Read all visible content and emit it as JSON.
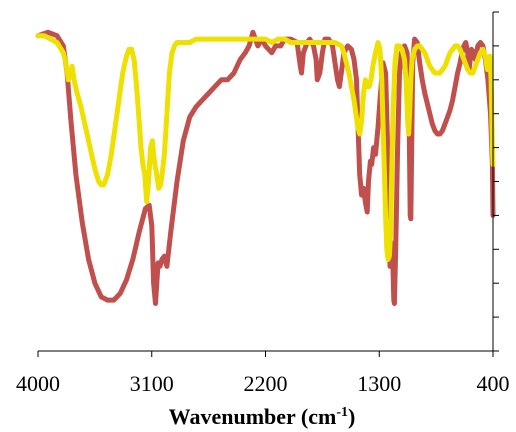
{
  "chart_data": {
    "type": "line",
    "xlabel": "Wavenumber (cm",
    "xlabel_sup": "-1",
    "xlabel_end": ")",
    "xlim": [
      4000,
      400
    ],
    "x_reversed": true,
    "xticks": [
      4000,
      3100,
      2200,
      1300,
      400
    ],
    "ylim": [
      0,
      1
    ],
    "y_ticks_count": 11,
    "y_tick_labels_shown": false,
    "grid": false,
    "legend": "none",
    "series": [
      {
        "color": "#c0504d",
        "points": [
          [
            4000,
            0.93
          ],
          [
            3920,
            0.94
          ],
          [
            3850,
            0.93
          ],
          [
            3800,
            0.9
          ],
          [
            3770,
            0.82
          ],
          [
            3740,
            0.68
          ],
          [
            3700,
            0.52
          ],
          [
            3650,
            0.38
          ],
          [
            3600,
            0.27
          ],
          [
            3550,
            0.2
          ],
          [
            3500,
            0.16
          ],
          [
            3450,
            0.15
          ],
          [
            3400,
            0.15
          ],
          [
            3350,
            0.17
          ],
          [
            3300,
            0.21
          ],
          [
            3250,
            0.27
          ],
          [
            3200,
            0.35
          ],
          [
            3150,
            0.42
          ],
          [
            3120,
            0.43
          ],
          [
            3100,
            0.37
          ],
          [
            3085,
            0.2
          ],
          [
            3070,
            0.14
          ],
          [
            3060,
            0.2
          ],
          [
            3050,
            0.26
          ],
          [
            3035,
            0.25
          ],
          [
            3020,
            0.27
          ],
          [
            3000,
            0.28
          ],
          [
            2980,
            0.25
          ],
          [
            2950,
            0.35
          ],
          [
            2900,
            0.5
          ],
          [
            2850,
            0.62
          ],
          [
            2800,
            0.69
          ],
          [
            2750,
            0.72
          ],
          [
            2700,
            0.74
          ],
          [
            2650,
            0.76
          ],
          [
            2600,
            0.78
          ],
          [
            2550,
            0.8
          ],
          [
            2500,
            0.8
          ],
          [
            2450,
            0.82
          ],
          [
            2400,
            0.86
          ],
          [
            2360,
            0.88
          ],
          [
            2330,
            0.9
          ],
          [
            2300,
            0.94
          ],
          [
            2260,
            0.9
          ],
          [
            2230,
            0.92
          ],
          [
            2200,
            0.9
          ],
          [
            2150,
            0.88
          ],
          [
            2120,
            0.9
          ],
          [
            2080,
            0.9
          ],
          [
            2050,
            0.92
          ],
          [
            2000,
            0.92
          ],
          [
            1950,
            0.91
          ],
          [
            1925,
            0.84
          ],
          [
            1915,
            0.82
          ],
          [
            1900,
            0.88
          ],
          [
            1870,
            0.91
          ],
          [
            1850,
            0.92
          ],
          [
            1820,
            0.9
          ],
          [
            1800,
            0.86
          ],
          [
            1790,
            0.8
          ],
          [
            1770,
            0.82
          ],
          [
            1750,
            0.88
          ],
          [
            1730,
            0.92
          ],
          [
            1700,
            0.92
          ],
          [
            1670,
            0.9
          ],
          [
            1650,
            0.85
          ],
          [
            1630,
            0.8
          ],
          [
            1615,
            0.78
          ],
          [
            1600,
            0.82
          ],
          [
            1580,
            0.88
          ],
          [
            1550,
            0.9
          ],
          [
            1520,
            0.89
          ],
          [
            1500,
            0.86
          ],
          [
            1480,
            0.8
          ],
          [
            1470,
            0.68
          ],
          [
            1455,
            0.52
          ],
          [
            1440,
            0.46
          ],
          [
            1425,
            0.48
          ],
          [
            1410,
            0.44
          ],
          [
            1395,
            0.41
          ],
          [
            1385,
            0.5
          ],
          [
            1370,
            0.56
          ],
          [
            1360,
            0.55
          ],
          [
            1345,
            0.6
          ],
          [
            1330,
            0.58
          ],
          [
            1310,
            0.66
          ],
          [
            1290,
            0.76
          ],
          [
            1270,
            0.85
          ],
          [
            1250,
            0.82
          ],
          [
            1230,
            0.55
          ],
          [
            1215,
            0.25
          ],
          [
            1205,
            0.32
          ],
          [
            1195,
            0.3
          ],
          [
            1185,
            0.15
          ],
          [
            1180,
            0.14
          ],
          [
            1170,
            0.3
          ],
          [
            1155,
            0.6
          ],
          [
            1140,
            0.82
          ],
          [
            1125,
            0.88
          ],
          [
            1100,
            0.9
          ],
          [
            1080,
            0.88
          ],
          [
            1065,
            0.72
          ],
          [
            1055,
            0.4
          ],
          [
            1050,
            0.39
          ],
          [
            1045,
            0.55
          ],
          [
            1035,
            0.85
          ],
          [
            1020,
            0.92
          ],
          [
            1000,
            0.91
          ],
          [
            980,
            0.85
          ],
          [
            960,
            0.8
          ],
          [
            940,
            0.76
          ],
          [
            920,
            0.73
          ],
          [
            900,
            0.7
          ],
          [
            880,
            0.67
          ],
          [
            860,
            0.65
          ],
          [
            840,
            0.64
          ],
          [
            820,
            0.64
          ],
          [
            800,
            0.65
          ],
          [
            780,
            0.67
          ],
          [
            760,
            0.69
          ],
          [
            740,
            0.71
          ],
          [
            720,
            0.74
          ],
          [
            700,
            0.78
          ],
          [
            680,
            0.82
          ],
          [
            660,
            0.85
          ],
          [
            645,
            0.88
          ],
          [
            630,
            0.9
          ],
          [
            615,
            0.91
          ],
          [
            600,
            0.88
          ],
          [
            590,
            0.83
          ],
          [
            580,
            0.86
          ],
          [
            570,
            0.89
          ],
          [
            555,
            0.88
          ],
          [
            540,
            0.86
          ],
          [
            520,
            0.9
          ],
          [
            500,
            0.91
          ],
          [
            480,
            0.9
          ],
          [
            460,
            0.86
          ],
          [
            440,
            0.8
          ],
          [
            420,
            0.7
          ],
          [
            405,
            0.55
          ],
          [
            400,
            0.4
          ]
        ]
      },
      {
        "color": "#ffff00",
        "stroke": "#eee000",
        "points": [
          [
            4000,
            0.93
          ],
          [
            3950,
            0.93
          ],
          [
            3900,
            0.92
          ],
          [
            3850,
            0.91
          ],
          [
            3800,
            0.88
          ],
          [
            3780,
            0.85
          ],
          [
            3760,
            0.8
          ],
          [
            3745,
            0.81
          ],
          [
            3730,
            0.84
          ],
          [
            3715,
            0.8
          ],
          [
            3690,
            0.76
          ],
          [
            3660,
            0.72
          ],
          [
            3630,
            0.67
          ],
          [
            3600,
            0.62
          ],
          [
            3570,
            0.57
          ],
          [
            3545,
            0.53
          ],
          [
            3520,
            0.5
          ],
          [
            3500,
            0.49
          ],
          [
            3480,
            0.49
          ],
          [
            3450,
            0.52
          ],
          [
            3420,
            0.58
          ],
          [
            3390,
            0.66
          ],
          [
            3360,
            0.74
          ],
          [
            3330,
            0.82
          ],
          [
            3300,
            0.87
          ],
          [
            3280,
            0.89
          ],
          [
            3260,
            0.89
          ],
          [
            3240,
            0.86
          ],
          [
            3220,
            0.78
          ],
          [
            3200,
            0.68
          ],
          [
            3185,
            0.6
          ],
          [
            3170,
            0.55
          ],
          [
            3155,
            0.52
          ],
          [
            3140,
            0.44
          ],
          [
            3125,
            0.5
          ],
          [
            3110,
            0.6
          ],
          [
            3095,
            0.62
          ],
          [
            3085,
            0.58
          ],
          [
            3075,
            0.55
          ],
          [
            3060,
            0.52
          ],
          [
            3045,
            0.48
          ],
          [
            3030,
            0.49
          ],
          [
            3015,
            0.53
          ],
          [
            3000,
            0.58
          ],
          [
            2980,
            0.7
          ],
          [
            2960,
            0.82
          ],
          [
            2940,
            0.88
          ],
          [
            2920,
            0.9
          ],
          [
            2900,
            0.91
          ],
          [
            2850,
            0.91
          ],
          [
            2800,
            0.91
          ],
          [
            2750,
            0.92
          ],
          [
            2700,
            0.92
          ],
          [
            2650,
            0.92
          ],
          [
            2600,
            0.92
          ],
          [
            2550,
            0.92
          ],
          [
            2500,
            0.92
          ],
          [
            2450,
            0.92
          ],
          [
            2400,
            0.92
          ],
          [
            2350,
            0.92
          ],
          [
            2300,
            0.92
          ],
          [
            2250,
            0.92
          ],
          [
            2200,
            0.92
          ],
          [
            2150,
            0.91
          ],
          [
            2100,
            0.92
          ],
          [
            2050,
            0.92
          ],
          [
            2000,
            0.91
          ],
          [
            1950,
            0.91
          ],
          [
            1900,
            0.91
          ],
          [
            1850,
            0.91
          ],
          [
            1800,
            0.91
          ],
          [
            1750,
            0.91
          ],
          [
            1700,
            0.91
          ],
          [
            1650,
            0.91
          ],
          [
            1600,
            0.9
          ],
          [
            1580,
            0.88
          ],
          [
            1560,
            0.85
          ],
          [
            1540,
            0.82
          ],
          [
            1520,
            0.78
          ],
          [
            1500,
            0.74
          ],
          [
            1485,
            0.7
          ],
          [
            1470,
            0.66
          ],
          [
            1455,
            0.64
          ],
          [
            1440,
            0.68
          ],
          [
            1425,
            0.76
          ],
          [
            1410,
            0.8
          ],
          [
            1395,
            0.78
          ],
          [
            1380,
            0.78
          ],
          [
            1365,
            0.8
          ],
          [
            1350,
            0.84
          ],
          [
            1330,
            0.88
          ],
          [
            1310,
            0.91
          ],
          [
            1295,
            0.89
          ],
          [
            1280,
            0.8
          ],
          [
            1265,
            0.6
          ],
          [
            1250,
            0.4
          ],
          [
            1240,
            0.3
          ],
          [
            1230,
            0.27
          ],
          [
            1220,
            0.28
          ],
          [
            1210,
            0.35
          ],
          [
            1200,
            0.55
          ],
          [
            1190,
            0.72
          ],
          [
            1175,
            0.85
          ],
          [
            1160,
            0.9
          ],
          [
            1140,
            0.9
          ],
          [
            1120,
            0.89
          ],
          [
            1100,
            0.86
          ],
          [
            1085,
            0.78
          ],
          [
            1075,
            0.68
          ],
          [
            1068,
            0.64
          ],
          [
            1060,
            0.7
          ],
          [
            1050,
            0.8
          ],
          [
            1040,
            0.86
          ],
          [
            1020,
            0.89
          ],
          [
            1000,
            0.9
          ],
          [
            980,
            0.9
          ],
          [
            960,
            0.89
          ],
          [
            940,
            0.88
          ],
          [
            920,
            0.86
          ],
          [
            900,
            0.84
          ],
          [
            880,
            0.83
          ],
          [
            860,
            0.82
          ],
          [
            840,
            0.82
          ],
          [
            820,
            0.82
          ],
          [
            800,
            0.83
          ],
          [
            780,
            0.84
          ],
          [
            760,
            0.86
          ],
          [
            740,
            0.88
          ],
          [
            720,
            0.89
          ],
          [
            700,
            0.9
          ],
          [
            680,
            0.9
          ],
          [
            660,
            0.89
          ],
          [
            640,
            0.87
          ],
          [
            620,
            0.85
          ],
          [
            600,
            0.83
          ],
          [
            580,
            0.82
          ],
          [
            560,
            0.82
          ],
          [
            540,
            0.84
          ],
          [
            520,
            0.86
          ],
          [
            500,
            0.88
          ],
          [
            480,
            0.89
          ],
          [
            460,
            0.87
          ],
          [
            445,
            0.83
          ],
          [
            435,
            0.86
          ],
          [
            425,
            0.87
          ],
          [
            415,
            0.8
          ],
          [
            405,
            0.6
          ],
          [
            400,
            0.55
          ]
        ]
      }
    ]
  }
}
